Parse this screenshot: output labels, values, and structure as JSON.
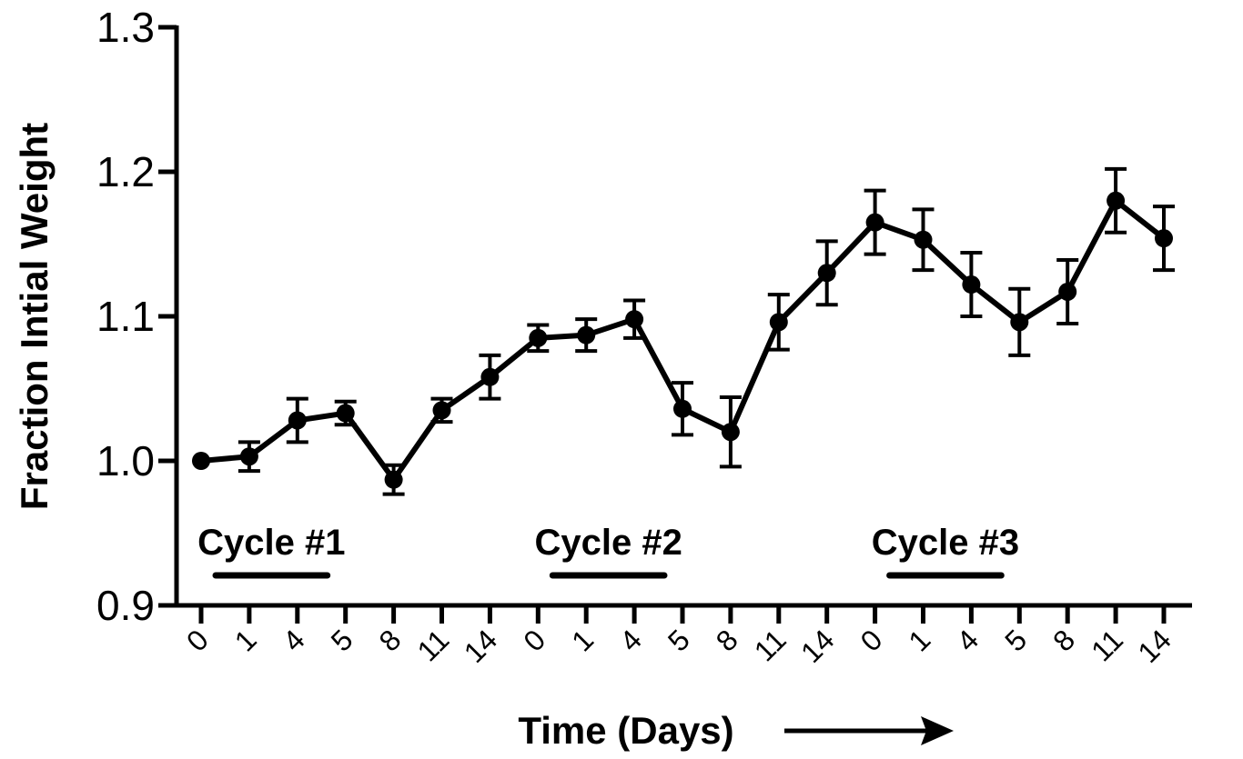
{
  "chart_data": {
    "type": "line",
    "xlabel": "Time (Days)",
    "ylabel": "Fraction Intial Weight",
    "ylim": [
      0.9,
      1.3
    ],
    "yticks": [
      "0.9",
      "1.0",
      "1.1",
      "1.2",
      "1.3"
    ],
    "categories": [
      "0",
      "1",
      "4",
      "5",
      "8",
      "11",
      "14",
      "0",
      "1",
      "4",
      "5",
      "8",
      "11",
      "14",
      "0",
      "1",
      "4",
      "5",
      "8",
      "11",
      "14"
    ],
    "series": [
      {
        "values": [
          1.0,
          1.003,
          1.028,
          1.033,
          0.987,
          1.035,
          1.058,
          1.085,
          1.087,
          1.098,
          1.036,
          1.02,
          1.096,
          1.13,
          1.165,
          1.153,
          1.122,
          1.096,
          1.117,
          1.18,
          1.154
        ],
        "errors": [
          0.0,
          0.01,
          0.015,
          0.008,
          0.01,
          0.008,
          0.015,
          0.009,
          0.011,
          0.013,
          0.018,
          0.024,
          0.019,
          0.022,
          0.022,
          0.021,
          0.022,
          0.023,
          0.022,
          0.022,
          0.022
        ]
      }
    ],
    "annotations": [
      {
        "text": "Cycle #1",
        "from_index": 0,
        "to_index": 3
      },
      {
        "text": "Cycle #2",
        "from_index": 7,
        "to_index": 10
      },
      {
        "text": "Cycle #3",
        "from_index": 14,
        "to_index": 17
      }
    ],
    "grid": false,
    "legend": "none",
    "line_color": "#000000"
  }
}
